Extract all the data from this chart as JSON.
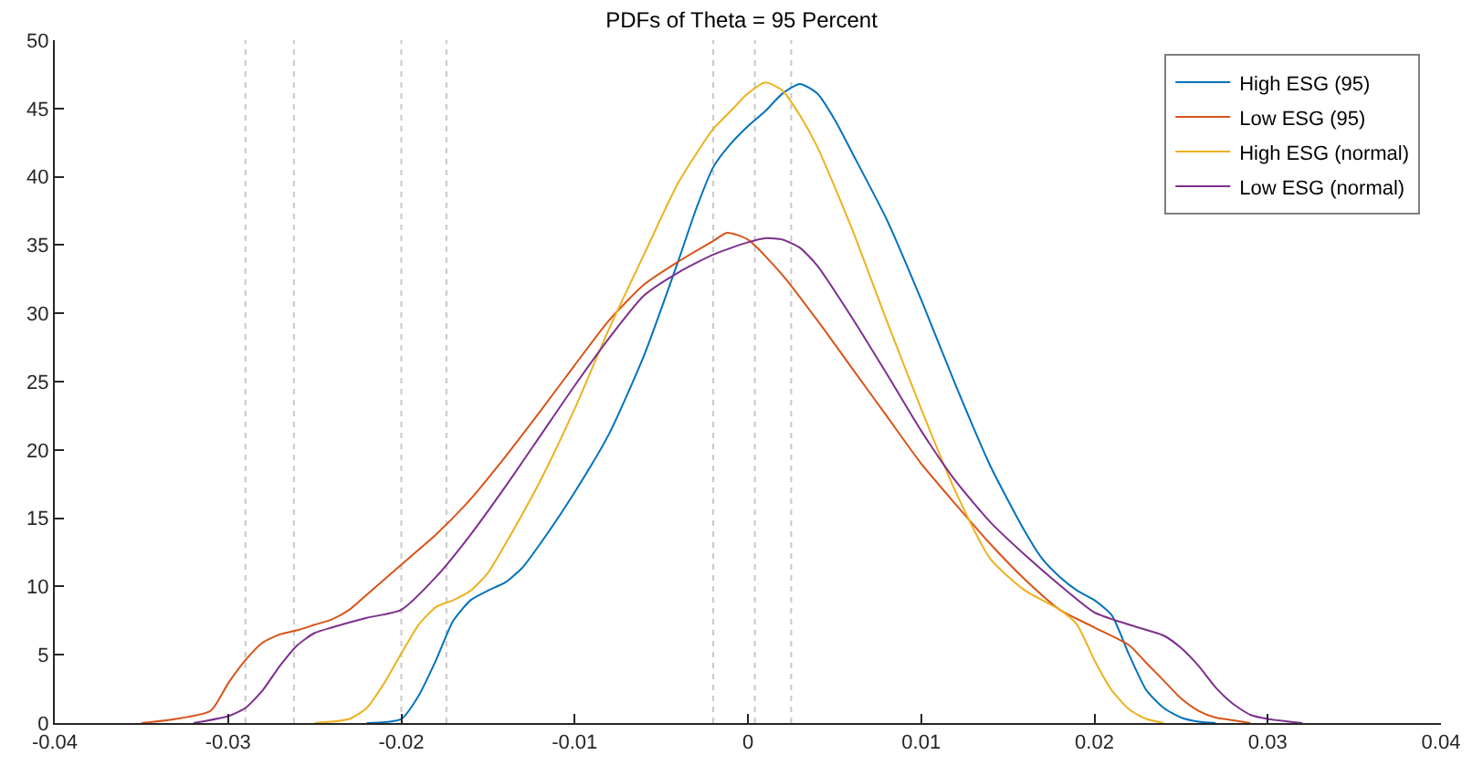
{
  "chart_data": {
    "type": "line",
    "title": "PDFs of Theta = 95 Percent",
    "xlim": [
      -0.04,
      0.04
    ],
    "xticks": [
      -0.04,
      -0.03,
      -0.02,
      -0.01,
      0,
      0.01,
      0.02,
      0.03,
      0.04
    ],
    "ylim": [
      0,
      50
    ],
    "yticks": [
      0,
      5,
      10,
      15,
      20,
      25,
      30,
      35,
      40,
      45,
      50
    ],
    "grid": false,
    "legend": "top right",
    "marker": "none",
    "line_style": "solid",
    "ref_lines": [
      {
        "axis": "x",
        "value": -0.029,
        "color": "#c8c8c8",
        "line_style": "dotted"
      },
      {
        "axis": "x",
        "value": -0.0262,
        "color": "#c8c8c8",
        "line_style": "dotted"
      },
      {
        "axis": "x",
        "value": -0.02,
        "color": "#c8c8c8",
        "line_style": "dotted"
      },
      {
        "axis": "x",
        "value": -0.0174,
        "color": "#c8c8c8",
        "line_style": "dotted"
      },
      {
        "axis": "x",
        "value": -0.002,
        "color": "#c8c8c8",
        "line_style": "dotted"
      },
      {
        "axis": "x",
        "value": 0.0004,
        "color": "#c8c8c8",
        "line_style": "dotted"
      },
      {
        "axis": "x",
        "value": 0.0025,
        "color": "#c8c8c8",
        "line_style": "dotted"
      }
    ],
    "series": [
      {
        "name": "High ESG (95)",
        "color": "#0072bd",
        "x": [
          -0.022,
          -0.02,
          -0.019,
          -0.018,
          -0.017,
          -0.016,
          -0.015,
          -0.014,
          -0.013,
          -0.012,
          -0.01,
          -0.008,
          -0.006,
          -0.004,
          -0.003,
          -0.002,
          -0.001,
          0,
          0.001,
          0.002,
          0.003,
          0.004,
          0.005,
          0.006,
          0.008,
          0.01,
          0.012,
          0.014,
          0.016,
          0.017,
          0.018,
          0.019,
          0.02,
          0.021,
          0.022,
          0.023,
          0.024,
          0.025,
          0.026,
          0.027
        ],
        "values": [
          0,
          0.3,
          2.0,
          4.6,
          7.5,
          9.0,
          9.7,
          10.3,
          11.4,
          13.1,
          16.9,
          21.2,
          26.9,
          33.9,
          37.6,
          40.7,
          42.4,
          43.7,
          44.8,
          46.1,
          46.8,
          46.1,
          44.2,
          41.8,
          36.9,
          31.0,
          24.7,
          18.8,
          14.0,
          12.0,
          10.7,
          9.7,
          9.0,
          7.9,
          5.0,
          2.4,
          1.1,
          0.4,
          0.1,
          0
        ]
      },
      {
        "name": "Low ESG (95)",
        "color": "#d95319",
        "x": [
          -0.035,
          -0.033,
          -0.031,
          -0.03,
          -0.029,
          -0.028,
          -0.027,
          -0.026,
          -0.025,
          -0.024,
          -0.023,
          -0.022,
          -0.021,
          -0.02,
          -0.018,
          -0.016,
          -0.014,
          -0.012,
          -0.01,
          -0.008,
          -0.006,
          -0.004,
          -0.002,
          -0.0012,
          0,
          0.002,
          0.004,
          0.006,
          0.008,
          0.01,
          0.012,
          0.014,
          0.016,
          0.018,
          0.02,
          0.022,
          0.023,
          0.024,
          0.025,
          0.026,
          0.027,
          0.028,
          0.029
        ],
        "values": [
          0,
          0.3,
          0.9,
          2.9,
          4.6,
          5.9,
          6.5,
          6.8,
          7.2,
          7.6,
          8.3,
          9.4,
          10.5,
          11.6,
          13.8,
          16.4,
          19.5,
          22.8,
          26.2,
          29.5,
          32.1,
          33.8,
          35.3,
          35.9,
          35.4,
          32.8,
          29.5,
          26.0,
          22.5,
          19.0,
          16.0,
          13.1,
          10.5,
          8.3,
          7.0,
          5.7,
          4.4,
          3.1,
          1.8,
          0.9,
          0.4,
          0.2,
          0
        ]
      },
      {
        "name": "High ESG (normal)",
        "color": "#edb120",
        "x": [
          -0.025,
          -0.023,
          -0.022,
          -0.021,
          -0.02,
          -0.019,
          -0.018,
          -0.017,
          -0.016,
          -0.015,
          -0.014,
          -0.012,
          -0.01,
          -0.008,
          -0.006,
          -0.004,
          -0.002,
          -0.001,
          0,
          0.001,
          0.002,
          0.003,
          0.004,
          0.006,
          0.008,
          0.01,
          0.012,
          0.014,
          0.016,
          0.018,
          0.019,
          0.02,
          0.021,
          0.022,
          0.023,
          0.024
        ],
        "values": [
          0,
          0.3,
          1.1,
          2.9,
          5.1,
          7.2,
          8.5,
          9.0,
          9.7,
          11.0,
          13.1,
          17.7,
          23.0,
          28.9,
          34.3,
          39.6,
          43.5,
          44.8,
          46.1,
          46.9,
          46.3,
          44.5,
          42.2,
          36.2,
          29.5,
          23.0,
          16.9,
          12.0,
          9.7,
          8.3,
          7.2,
          4.6,
          2.4,
          1.0,
          0.3,
          0
        ]
      },
      {
        "name": "Low ESG (normal)",
        "color": "#7e2f8e",
        "x": [
          -0.032,
          -0.03,
          -0.029,
          -0.028,
          -0.027,
          -0.026,
          -0.025,
          -0.024,
          -0.022,
          -0.02,
          -0.018,
          -0.016,
          -0.014,
          -0.012,
          -0.01,
          -0.008,
          -0.006,
          -0.004,
          -0.002,
          0,
          0.001,
          0.002,
          0.003,
          0.004,
          0.006,
          0.008,
          0.01,
          0.012,
          0.014,
          0.016,
          0.018,
          0.02,
          0.022,
          0.024,
          0.025,
          0.026,
          0.027,
          0.028,
          0.029,
          0.03,
          0.032
        ],
        "values": [
          0,
          0.5,
          1.1,
          2.4,
          4.2,
          5.7,
          6.6,
          7.0,
          7.7,
          8.3,
          10.7,
          13.8,
          17.3,
          21.0,
          24.7,
          28.2,
          31.3,
          33.0,
          34.3,
          35.2,
          35.5,
          35.4,
          34.8,
          33.5,
          29.7,
          25.6,
          21.4,
          17.7,
          14.7,
          12.3,
          10.1,
          8.1,
          7.2,
          6.4,
          5.5,
          4.2,
          2.6,
          1.4,
          0.6,
          0.3,
          0
        ]
      }
    ]
  }
}
